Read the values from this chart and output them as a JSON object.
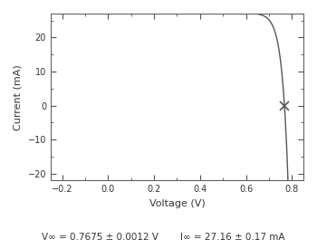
{
  "title": "",
  "xlabel": "Voltage (V)",
  "ylabel": "Current (mA)",
  "xlim": [
    -0.25,
    0.85
  ],
  "ylim": [
    -22,
    27
  ],
  "xticks": [
    -0.2,
    0.0,
    0.2,
    0.4,
    0.6,
    0.8
  ],
  "yticks": [
    -20,
    -10,
    0,
    10,
    20
  ],
  "voc": 0.7675,
  "isc": 27.16,
  "annotation_left": "V∞ = 0.7675 ± 0.0012 V",
  "annotation_right": "I∞ = 27.16 ± 0.17 mA",
  "curve_color": "#555555",
  "marker_color": "#555555",
  "background_color": "#ffffff",
  "figsize": [
    3.5,
    2.75
  ],
  "dpi": 100
}
